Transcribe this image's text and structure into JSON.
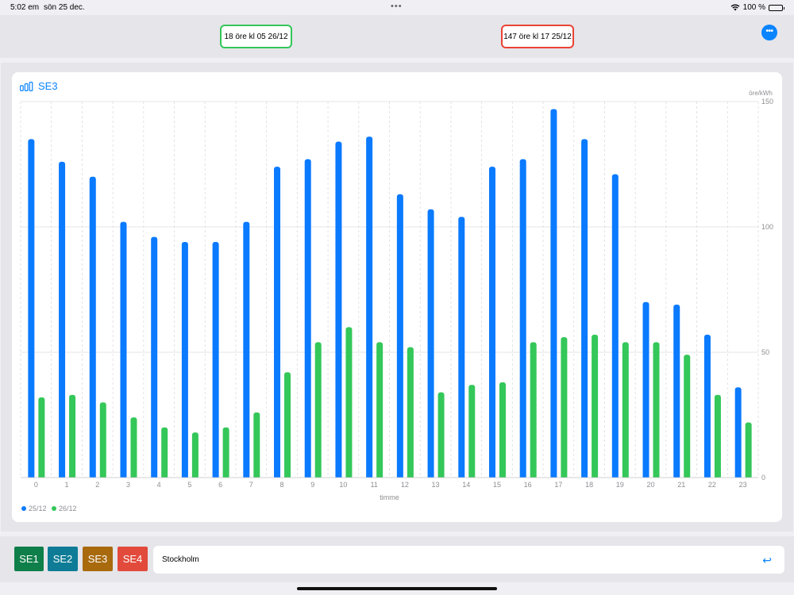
{
  "status_bar": {
    "time": "5:02 em",
    "date": "sön 25 dec.",
    "dots": "•••",
    "battery": "100 %"
  },
  "summary": {
    "min_label": "18 öre kl 05 26/12",
    "max_label": "147 öre kl 17 25/12",
    "min_color": "#34c759",
    "max_color": "#ea4335"
  },
  "more_button": {
    "label": "•••"
  },
  "chart_header": {
    "title": "SE3",
    "icon": "bar-chart-icon"
  },
  "chart_data": {
    "type": "bar",
    "title": "SE3",
    "xlabel": "timme",
    "ylabel": "öre/kWh",
    "ylim": [
      0,
      150
    ],
    "yticks": [
      0,
      50,
      100,
      150
    ],
    "categories": [
      "0",
      "1",
      "2",
      "3",
      "4",
      "5",
      "6",
      "7",
      "8",
      "9",
      "10",
      "11",
      "12",
      "13",
      "14",
      "15",
      "16",
      "17",
      "18",
      "19",
      "20",
      "21",
      "22",
      "23"
    ],
    "series": [
      {
        "name": "25/12",
        "color": "#0a7aff",
        "values": [
          135,
          126,
          120,
          102,
          96,
          94,
          94,
          102,
          124,
          127,
          134,
          136,
          113,
          107,
          104,
          124,
          127,
          147,
          135,
          121,
          70,
          69,
          57,
          36
        ]
      },
      {
        "name": "26/12",
        "color": "#34c759",
        "values": [
          32,
          33,
          30,
          24,
          20,
          18,
          20,
          26,
          42,
          54,
          60,
          54,
          52,
          34,
          37,
          38,
          54,
          56,
          57,
          54,
          54,
          49,
          33,
          22
        ]
      }
    ],
    "grid": true,
    "legend": "bottom-left"
  },
  "region_buttons": [
    {
      "label": "SE1",
      "color": "#0f7f4a"
    },
    {
      "label": "SE2",
      "color": "#0e7c96"
    },
    {
      "label": "SE3",
      "color": "#a86a0c"
    },
    {
      "label": "SE4",
      "color": "#e24a3b"
    }
  ],
  "city_field": {
    "value": "Stockholm",
    "return_icon": "return-icon"
  }
}
